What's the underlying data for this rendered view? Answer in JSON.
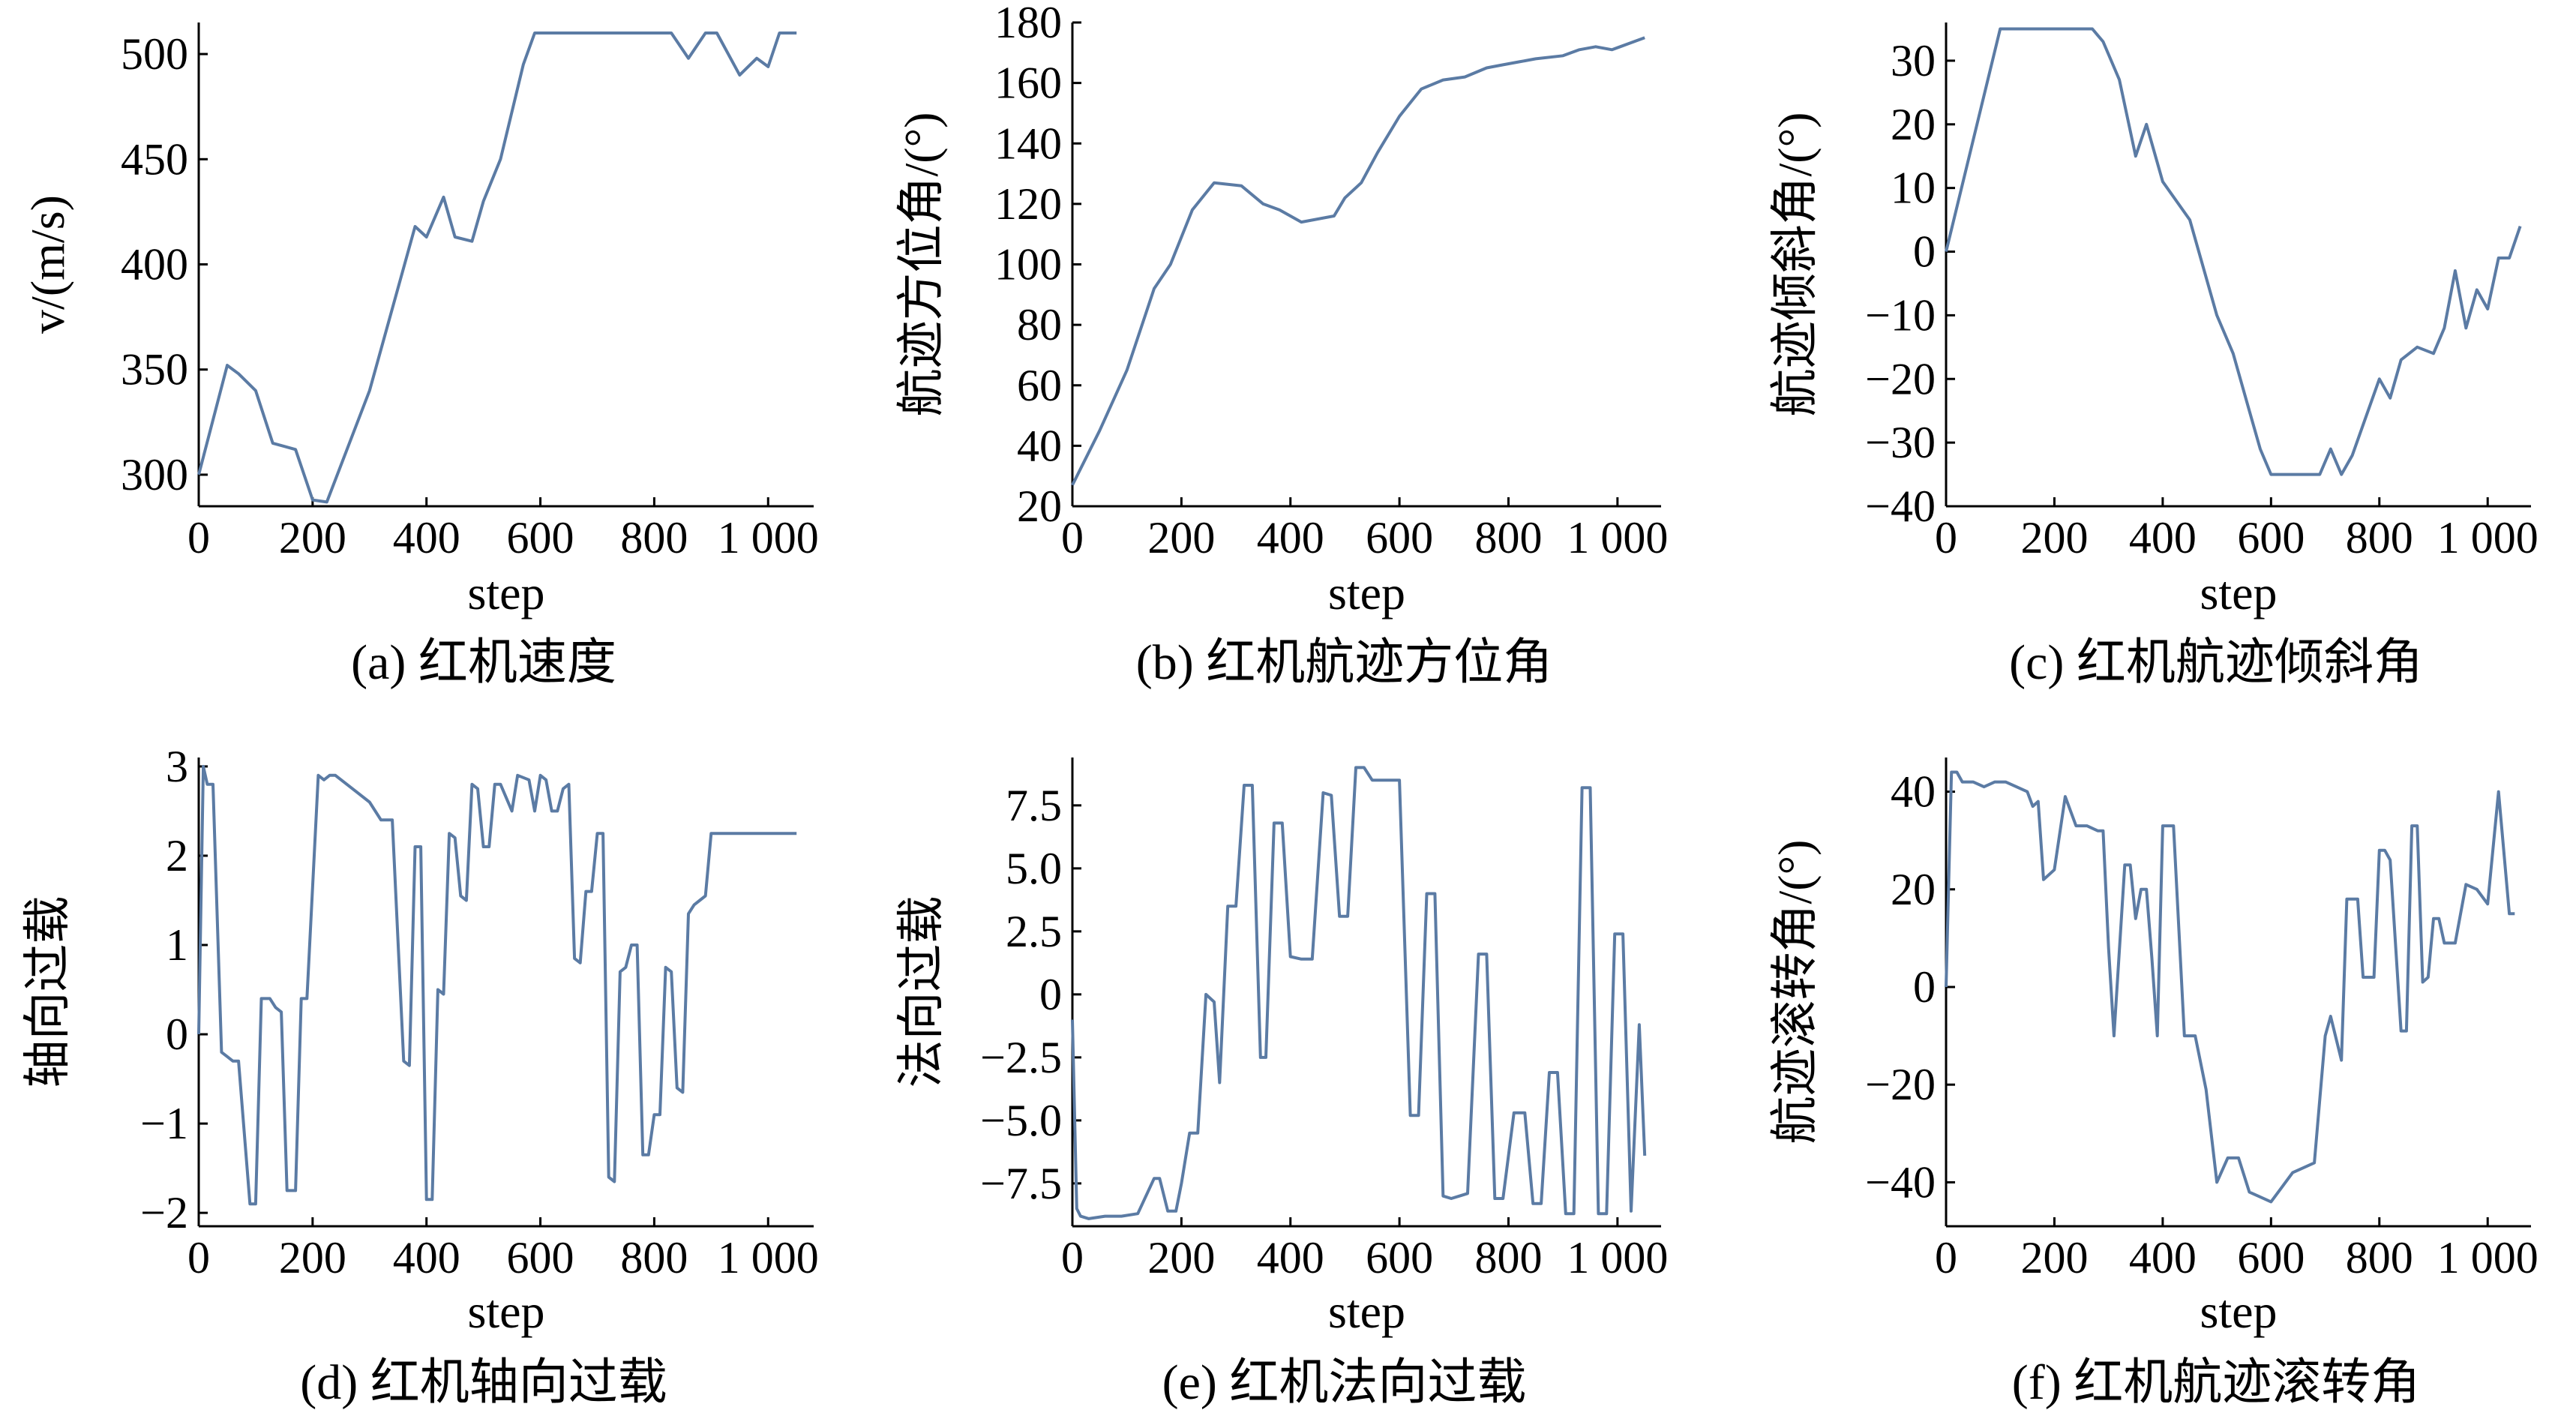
{
  "colors": {
    "line": "#5b7ba4",
    "axis": "#000000"
  },
  "chart_data": [
    {
      "id": "a",
      "type": "line",
      "caption": "(a) 红机速度",
      "xlabel": "step",
      "ylabel": "v/(m/s)",
      "xlim": [
        0,
        1080
      ],
      "ylim": [
        285,
        515
      ],
      "xticks": [
        0,
        200,
        400,
        600,
        800,
        1000
      ],
      "xtick_labels": [
        "0",
        "200",
        "400",
        "600",
        "800",
        "1 000"
      ],
      "yticks": [
        300,
        350,
        400,
        450,
        500
      ],
      "ytick_labels": [
        "300",
        "350",
        "400",
        "450",
        "500"
      ],
      "series": [
        {
          "x": [
            0,
            50,
            70,
            100,
            130,
            170,
            200,
            225,
            300,
            380,
            400,
            430,
            450,
            480,
            500,
            530,
            570,
            590,
            830,
            860,
            890,
            910,
            950,
            980,
            1000,
            1020,
            1050
          ],
          "y": [
            300,
            352,
            348,
            340,
            315,
            312,
            288,
            287,
            340,
            418,
            413,
            432,
            413,
            411,
            430,
            450,
            495,
            510,
            510,
            498,
            510,
            510,
            490,
            498,
            494,
            510,
            510
          ]
        }
      ]
    },
    {
      "id": "b",
      "type": "line",
      "caption": "(b) 红机航迹方位角",
      "xlabel": "step",
      "ylabel": "航迹方位角/(°)",
      "xlim": [
        0,
        1080
      ],
      "ylim": [
        20,
        180
      ],
      "xticks": [
        0,
        200,
        400,
        600,
        800,
        1000
      ],
      "xtick_labels": [
        "0",
        "200",
        "400",
        "600",
        "800",
        "1 000"
      ],
      "yticks": [
        20,
        40,
        60,
        80,
        100,
        120,
        140,
        160,
        180
      ],
      "ytick_labels": [
        "20",
        "40",
        "60",
        "80",
        "100",
        "120",
        "140",
        "160",
        "180"
      ],
      "series": [
        {
          "x": [
            0,
            50,
            100,
            150,
            180,
            220,
            260,
            310,
            350,
            380,
            420,
            480,
            500,
            530,
            560,
            600,
            640,
            680,
            720,
            760,
            790,
            820,
            850,
            900,
            930,
            960,
            990,
            1020,
            1050
          ],
          "y": [
            27,
            45,
            65,
            92,
            100,
            118,
            127,
            126,
            120,
            118,
            114,
            116,
            122,
            127,
            137,
            149,
            158,
            161,
            162,
            165,
            166,
            167,
            168,
            169,
            171,
            172,
            171,
            173,
            175
          ]
        }
      ]
    },
    {
      "id": "c",
      "type": "line",
      "caption": "(c) 红机航迹倾斜角",
      "xlabel": "step",
      "ylabel": "航迹倾斜角/(°)",
      "xlim": [
        0,
        1080
      ],
      "ylim": [
        -40,
        36
      ],
      "xticks": [
        0,
        200,
        400,
        600,
        800,
        1000
      ],
      "xtick_labels": [
        "0",
        "200",
        "400",
        "600",
        "800",
        "1 000"
      ],
      "yticks": [
        -40,
        -30,
        -20,
        -10,
        0,
        10,
        20,
        30
      ],
      "ytick_labels": [
        "−40",
        "−30",
        "−20",
        "−10",
        "0",
        "10",
        "20",
        "30"
      ],
      "series": [
        {
          "x": [
            0,
            100,
            270,
            290,
            320,
            350,
            370,
            400,
            450,
            500,
            530,
            560,
            580,
            600,
            690,
            710,
            730,
            750,
            800,
            820,
            840,
            870,
            900,
            920,
            940,
            960,
            980,
            1000,
            1020,
            1040,
            1060
          ],
          "y": [
            0,
            35,
            35,
            33,
            27,
            15,
            20,
            11,
            5,
            -10,
            -16,
            -25,
            -31,
            -35,
            -35,
            -31,
            -35,
            -32,
            -20,
            -23,
            -17,
            -15,
            -16,
            -12,
            -3,
            -12,
            -6,
            -9,
            -1,
            -1,
            4
          ]
        }
      ]
    },
    {
      "id": "d",
      "type": "line",
      "caption": "(d) 红机轴向过载",
      "xlabel": "step",
      "ylabel": "轴向过载",
      "xlim": [
        0,
        1080
      ],
      "ylim": [
        -2.15,
        3.1
      ],
      "xticks": [
        0,
        200,
        400,
        600,
        800,
        1000
      ],
      "xtick_labels": [
        "0",
        "200",
        "400",
        "600",
        "800",
        "1 000"
      ],
      "yticks": [
        -2,
        -1,
        0,
        1,
        2,
        3
      ],
      "ytick_labels": [
        "−2",
        "−1",
        "0",
        "1",
        "2",
        "3"
      ],
      "series": [
        {
          "x": [
            0,
            8,
            15,
            25,
            40,
            50,
            60,
            70,
            90,
            100,
            110,
            125,
            135,
            145,
            155,
            170,
            180,
            190,
            210,
            220,
            230,
            240,
            260,
            280,
            300,
            320,
            340,
            360,
            370,
            380,
            390,
            400,
            410,
            420,
            430,
            440,
            450,
            460,
            470,
            480,
            490,
            500,
            510,
            520,
            530,
            550,
            560,
            580,
            590,
            600,
            610,
            620,
            630,
            640,
            650,
            660,
            670,
            680,
            690,
            700,
            710,
            720,
            730,
            740,
            750,
            760,
            770,
            780,
            790,
            800,
            810,
            820,
            830,
            840,
            850,
            860,
            870,
            880,
            890,
            900,
            910,
            920,
            930,
            940,
            950,
            960,
            970,
            980,
            990,
            1000,
            1010,
            1020,
            1030,
            1050
          ],
          "y": [
            0,
            3.0,
            2.8,
            2.8,
            -0.2,
            -0.25,
            -0.3,
            -0.3,
            -1.9,
            -1.9,
            0.4,
            0.4,
            0.3,
            0.25,
            -1.75,
            -1.75,
            0.4,
            0.4,
            2.9,
            2.85,
            2.9,
            2.9,
            2.8,
            2.7,
            2.6,
            2.4,
            2.4,
            -0.3,
            -0.35,
            2.1,
            2.1,
            -1.85,
            -1.85,
            0.5,
            0.45,
            2.25,
            2.2,
            1.55,
            1.5,
            2.8,
            2.75,
            2.1,
            2.1,
            2.8,
            2.8,
            2.5,
            2.9,
            2.85,
            2.5,
            2.9,
            2.85,
            2.5,
            2.5,
            2.75,
            2.8,
            0.85,
            0.8,
            1.6,
            1.6,
            2.25,
            2.25,
            -1.6,
            -1.65,
            0.7,
            0.75,
            1.0,
            1.0,
            -1.35,
            -1.35,
            -0.9,
            -0.9,
            0.75,
            0.7,
            -0.6,
            -0.65,
            1.35,
            1.45,
            1.5,
            1.55,
            2.25,
            2.25,
            2.25,
            2.25,
            2.25,
            2.25,
            2.25,
            2.25,
            2.25,
            2.25,
            2.25,
            2.25,
            2.25,
            2.25,
            2.25
          ]
        }
      ]
    },
    {
      "id": "e",
      "type": "line",
      "caption": "(e) 红机法向过载",
      "xlabel": "step",
      "ylabel": "法向过载",
      "xlim": [
        0,
        1080
      ],
      "ylim": [
        -9.2,
        9.4
      ],
      "xticks": [
        0,
        200,
        400,
        600,
        800,
        1000
      ],
      "xtick_labels": [
        "0",
        "200",
        "400",
        "600",
        "800",
        "1 000"
      ],
      "yticks": [
        -7.5,
        -5,
        -2.5,
        0,
        2.5,
        5,
        7.5
      ],
      "ytick_labels": [
        "−7.5",
        "−5.0",
        "−2.5",
        "0",
        "2.5",
        "5.0",
        "7.5"
      ],
      "series": [
        {
          "x": [
            0,
            8,
            15,
            30,
            60,
            90,
            120,
            150,
            160,
            175,
            190,
            200,
            215,
            230,
            245,
            260,
            270,
            285,
            300,
            315,
            330,
            345,
            355,
            370,
            385,
            400,
            420,
            440,
            460,
            475,
            490,
            505,
            520,
            535,
            550,
            570,
            600,
            620,
            635,
            650,
            665,
            680,
            695,
            710,
            725,
            745,
            760,
            775,
            790,
            810,
            830,
            845,
            860,
            875,
            890,
            905,
            920,
            935,
            950,
            965,
            980,
            995,
            1010,
            1025,
            1040,
            1050
          ],
          "y": [
            -1,
            -8.5,
            -8.8,
            -8.9,
            -8.8,
            -8.8,
            -8.7,
            -7.3,
            -7.3,
            -8.6,
            -8.6,
            -7.5,
            -5.5,
            -5.5,
            0,
            -0.3,
            -3.5,
            3.5,
            3.5,
            8.3,
            8.3,
            -2.5,
            -2.5,
            6.8,
            6.8,
            1.5,
            1.4,
            1.4,
            8.0,
            7.9,
            3.1,
            3.1,
            9.0,
            9.0,
            8.5,
            8.5,
            8.5,
            -4.8,
            -4.8,
            4.0,
            4.0,
            -8.0,
            -8.1,
            -8.0,
            -7.9,
            1.6,
            1.6,
            -8.1,
            -8.1,
            -4.7,
            -4.7,
            -8.3,
            -8.3,
            -3.1,
            -3.1,
            -8.7,
            -8.7,
            8.2,
            8.2,
            -8.7,
            -8.7,
            2.4,
            2.4,
            -8.6,
            -1.2,
            -6.4
          ]
        }
      ]
    },
    {
      "id": "f",
      "type": "line",
      "caption": "(f) 红机航迹滚转角",
      "xlabel": "step",
      "ylabel": "航迹滚转角/(°)",
      "xlim": [
        0,
        1080
      ],
      "ylim": [
        -49,
        47
      ],
      "xticks": [
        0,
        200,
        400,
        600,
        800,
        1000
      ],
      "xtick_labels": [
        "0",
        "200",
        "400",
        "600",
        "800",
        "1 000"
      ],
      "yticks": [
        -40,
        -20,
        0,
        20,
        40
      ],
      "ytick_labels": [
        "−40",
        "−20",
        "0",
        "20",
        "40"
      ],
      "series": [
        {
          "x": [
            0,
            10,
            20,
            30,
            50,
            70,
            90,
            110,
            130,
            150,
            160,
            170,
            180,
            200,
            220,
            240,
            260,
            280,
            290,
            300,
            310,
            330,
            340,
            350,
            360,
            370,
            380,
            390,
            400,
            420,
            440,
            460,
            480,
            500,
            520,
            540,
            560,
            580,
            600,
            620,
            640,
            660,
            680,
            700,
            710,
            730,
            740,
            760,
            770,
            790,
            800,
            810,
            820,
            840,
            850,
            860,
            870,
            880,
            890,
            900,
            910,
            920,
            940,
            960,
            980,
            1000,
            1020,
            1040,
            1050
          ],
          "y": [
            0,
            44,
            44,
            42,
            42,
            41,
            42,
            42,
            41,
            40,
            37,
            38,
            22,
            24,
            39,
            33,
            33,
            32,
            32,
            8,
            -10,
            25,
            25,
            14,
            20,
            20,
            6,
            -10,
            33,
            33,
            -10,
            -10,
            -21,
            -40,
            -35,
            -35,
            -42,
            -43,
            -44,
            -41,
            -38,
            -37,
            -36,
            -10,
            -6,
            -15,
            18,
            18,
            2,
            2,
            28,
            28,
            26,
            -9,
            -9,
            33,
            33,
            1,
            2,
            14,
            14,
            9,
            9,
            21,
            20,
            17,
            40,
            15,
            15
          ]
        }
      ]
    }
  ]
}
